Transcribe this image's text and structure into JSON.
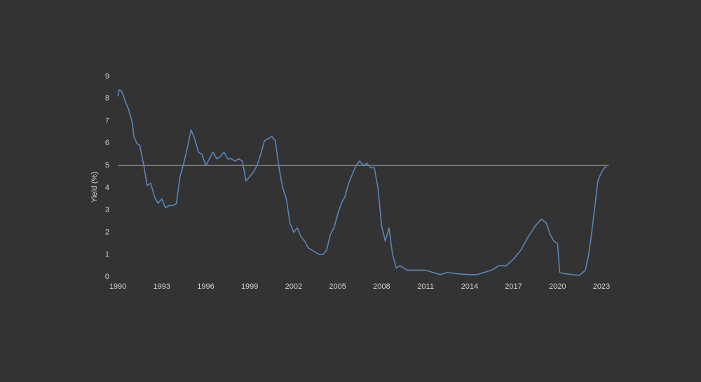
{
  "chart_data": {
    "type": "line",
    "y_label": "Yield (%)",
    "x": [
      1990.0,
      1990.1,
      1990.3,
      1990.5,
      1990.75,
      1991.0,
      1991.1,
      1991.3,
      1991.5,
      1991.75,
      1992.0,
      1992.25,
      1992.5,
      1992.75,
      1993.0,
      1993.25,
      1993.5,
      1993.75,
      1994.0,
      1994.25,
      1994.5,
      1994.75,
      1995.0,
      1995.25,
      1995.5,
      1995.75,
      1996.0,
      1996.25,
      1996.5,
      1996.75,
      1997.0,
      1997.25,
      1997.5,
      1997.75,
      1998.0,
      1998.25,
      1998.5,
      1998.75,
      1999.0,
      1999.25,
      1999.5,
      1999.75,
      2000.0,
      2000.25,
      2000.5,
      2000.75,
      2001.0,
      2001.25,
      2001.5,
      2001.75,
      2002.0,
      2002.25,
      2002.5,
      2002.75,
      2003.0,
      2003.25,
      2003.5,
      2003.75,
      2004.0,
      2004.25,
      2004.5,
      2004.75,
      2005.0,
      2005.25,
      2005.5,
      2005.75,
      2006.0,
      2006.25,
      2006.5,
      2006.75,
      2007.0,
      2007.25,
      2007.5,
      2007.75,
      2008.0,
      2008.25,
      2008.5,
      2008.75,
      2009.0,
      2009.25,
      2009.5,
      2009.75,
      2010.0,
      2010.5,
      2011.0,
      2011.5,
      2012.0,
      2012.5,
      2013.0,
      2013.5,
      2014.0,
      2014.5,
      2015.0,
      2015.5,
      2016.0,
      2016.5,
      2017.0,
      2017.5,
      2018.0,
      2018.5,
      2018.9,
      2019.25,
      2019.5,
      2019.75,
      2020.0,
      2020.15,
      2020.4,
      2020.75,
      2021.0,
      2021.5,
      2021.9,
      2022.1,
      2022.3,
      2022.5,
      2022.75,
      2023.0,
      2023.2,
      2023.35
    ],
    "series": [
      {
        "color": "#5a86b9",
        "values": [
          8.1,
          8.4,
          8.3,
          7.9,
          7.5,
          6.9,
          6.3,
          6.0,
          5.9,
          5.1,
          4.1,
          4.2,
          3.6,
          3.3,
          3.5,
          3.1,
          3.2,
          3.2,
          3.3,
          4.5,
          5.1,
          5.8,
          6.6,
          6.2,
          5.6,
          5.5,
          5.0,
          5.3,
          5.6,
          5.3,
          5.4,
          5.6,
          5.3,
          5.3,
          5.2,
          5.3,
          5.2,
          4.3,
          4.5,
          4.7,
          5.0,
          5.5,
          6.1,
          6.2,
          6.3,
          6.1,
          4.9,
          4.0,
          3.5,
          2.4,
          2.0,
          2.2,
          1.8,
          1.6,
          1.3,
          1.2,
          1.1,
          1.0,
          1.0,
          1.2,
          1.9,
          2.2,
          2.8,
          3.3,
          3.6,
          4.2,
          4.6,
          5.0,
          5.2,
          5.0,
          5.1,
          4.9,
          4.9,
          4.0,
          2.3,
          1.6,
          2.2,
          1.0,
          0.4,
          0.5,
          0.4,
          0.3,
          0.3,
          0.3,
          0.3,
          0.2,
          0.1,
          0.2,
          0.15,
          0.12,
          0.1,
          0.1,
          0.2,
          0.3,
          0.5,
          0.5,
          0.8,
          1.2,
          1.8,
          2.3,
          2.6,
          2.4,
          1.9,
          1.6,
          1.5,
          0.2,
          0.15,
          0.12,
          0.1,
          0.07,
          0.3,
          0.9,
          1.8,
          2.9,
          4.3,
          4.7,
          4.9,
          4.95
        ]
      }
    ],
    "reference_line": 5,
    "reference_color": "#8a8a8a",
    "xlim": [
      1990,
      2023.5
    ],
    "xticks": [
      1990,
      1993,
      1996,
      1999,
      2002,
      2005,
      2008,
      2011,
      2014,
      2017,
      2020,
      2023
    ],
    "ylim": [
      0,
      9
    ],
    "yticks": [
      0,
      1,
      2,
      3,
      4,
      5,
      6,
      7,
      8,
      9
    ]
  }
}
